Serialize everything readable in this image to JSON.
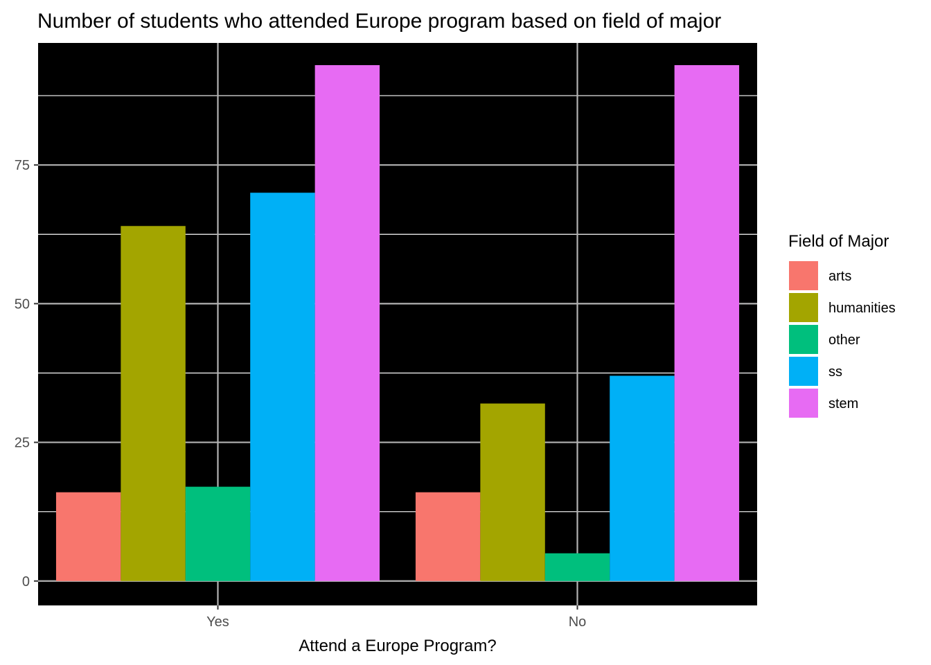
{
  "chart_data": {
    "type": "bar",
    "title": "Number of students who attended Europe program based on field of major",
    "xlabel": "Attend a Europe Program?",
    "ylabel": "",
    "categories": [
      "Yes",
      "No"
    ],
    "ylim": [
      -4.4,
      97
    ],
    "yticks": [
      0,
      25,
      50,
      75
    ],
    "grid": true,
    "background": "#000000",
    "legend": {
      "title": "Field of Major",
      "position": "right"
    },
    "series": [
      {
        "name": "arts",
        "color": "#F8766D",
        "values": [
          16,
          16
        ]
      },
      {
        "name": "humanities",
        "color": "#A3A500",
        "values": [
          64,
          32
        ]
      },
      {
        "name": "other",
        "color": "#00BF7D",
        "values": [
          17,
          5
        ]
      },
      {
        "name": "ss",
        "color": "#00B0F6",
        "values": [
          70,
          37
        ]
      },
      {
        "name": "stem",
        "color": "#E76BF3",
        "values": [
          93,
          93
        ]
      }
    ]
  }
}
